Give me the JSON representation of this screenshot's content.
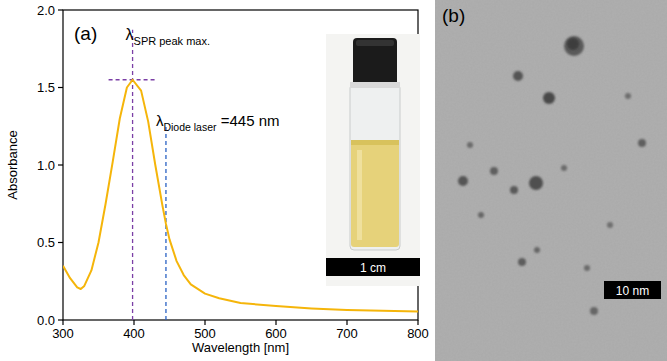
{
  "chart_data": {
    "type": "line",
    "x_label": "Wavelength [nm]",
    "y_label": "Absorbance",
    "color": "#f5b50a",
    "x": [
      300,
      310,
      320,
      325,
      330,
      340,
      350,
      360,
      370,
      380,
      390,
      398,
      410,
      420,
      430,
      440,
      445,
      450,
      460,
      470,
      480,
      500,
      520,
      550,
      600,
      650,
      700,
      750,
      800
    ],
    "values": [
      0.35,
      0.27,
      0.21,
      0.2,
      0.22,
      0.32,
      0.5,
      0.75,
      1.02,
      1.3,
      1.5,
      1.55,
      1.48,
      1.28,
      1.0,
      0.74,
      0.62,
      0.52,
      0.38,
      0.29,
      0.23,
      0.17,
      0.14,
      0.11,
      0.09,
      0.075,
      0.065,
      0.06,
      0.055
    ],
    "xlim": [
      300,
      800
    ],
    "xticks": [
      300,
      400,
      500,
      600,
      700,
      800
    ],
    "ylim": [
      0,
      2.0
    ],
    "yticks": [
      {
        "value": 0,
        "label": "0.0"
      },
      {
        "value": 0.5,
        "label": "0.5"
      },
      {
        "value": 1.0,
        "label": "1.0"
      },
      {
        "value": 1.5,
        "label": "1.5"
      },
      {
        "value": 2.0,
        "label": "2.0"
      }
    ],
    "grid": false,
    "panel_label": "(a)",
    "annotations": [
      {
        "text": "λ",
        "subscript": "SPR peak max.",
        "x": 398,
        "y": 1.55,
        "color": "#7b3fa6"
      },
      {
        "text": "λ",
        "subscript": "Diode laser",
        "suffix": " =445 nm",
        "x": 445,
        "color": "#2a62c4"
      }
    ],
    "inset": {
      "scale_label": "1 cm"
    },
    "image": {
      "panel_label": "(b)",
      "scale_label": "10 nm"
    }
  }
}
